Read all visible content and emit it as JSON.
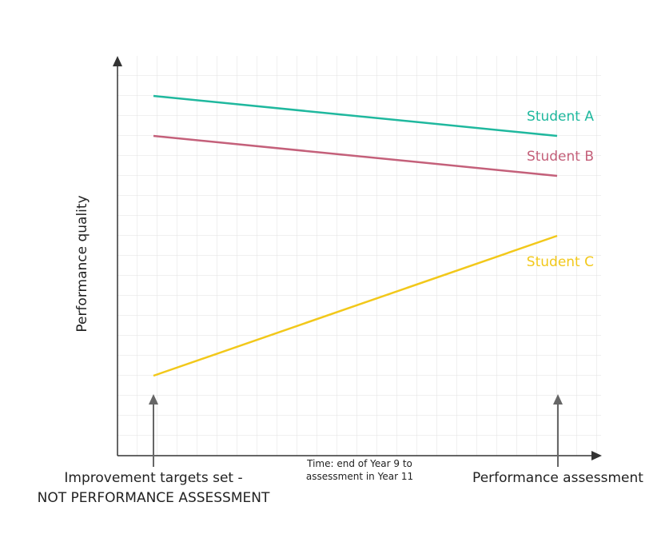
{
  "chart_data": {
    "type": "line",
    "ylabel": "Performance quality",
    "xlabel": "Time: end of Year 9 to\nassessment in Year 11",
    "categories": [
      "Improvement targets set -\nNOT PERFORMANCE ASSESSMENT",
      "Performance assessment"
    ],
    "ylim": [
      0,
      100
    ],
    "grid": true,
    "series": [
      {
        "name": "Student A",
        "color": "#1fb89e",
        "values": [
          90,
          80
        ]
      },
      {
        "name": "Student B",
        "color": "#c4607a",
        "values": [
          80,
          70
        ]
      },
      {
        "name": "Student C",
        "color": "#f2c81a",
        "values": [
          20,
          55
        ]
      }
    ]
  }
}
